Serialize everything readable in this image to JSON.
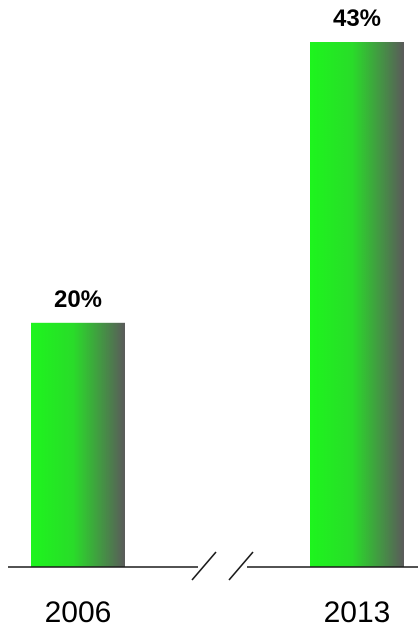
{
  "chart_data": {
    "type": "bar",
    "title": "",
    "xlabel": "",
    "ylabel": "",
    "categories": [
      "2006",
      "2013"
    ],
    "values": [
      20,
      43
    ],
    "data_labels": [
      "20%",
      "43%"
    ],
    "unit": "%",
    "ylim": [
      0,
      43
    ],
    "grid": false,
    "legend": "none",
    "x_axis_break": true,
    "colors": {
      "bar_gradient_start": "#1df51d",
      "bar_gradient_end": "#5a5a5a",
      "axis": "#1a1a1a",
      "text": "#000000"
    }
  }
}
